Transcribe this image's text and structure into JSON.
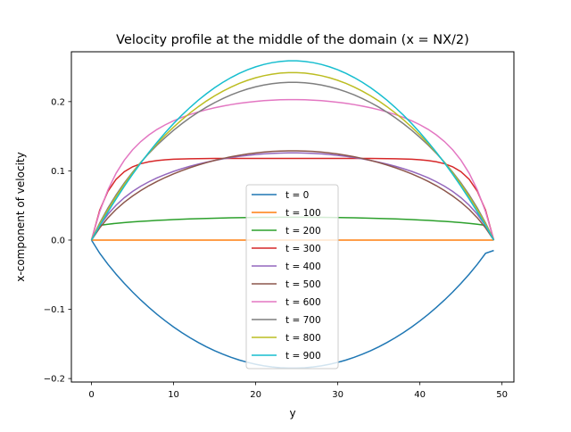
{
  "chart_data": {
    "type": "line",
    "title": "Velocity profile at the middle of the domain (x = NX/2)",
    "xlabel": "y",
    "ylabel": "x-component of velocity",
    "xlim": [
      -2.45,
      51.45
    ],
    "ylim": [
      -0.205,
      0.272
    ],
    "xticks": [
      0,
      10,
      20,
      30,
      40,
      50
    ],
    "yticks": [
      -0.2,
      -0.1,
      0.0,
      0.1,
      0.2
    ],
    "xtick_labels": [
      "0",
      "10",
      "20",
      "30",
      "40",
      "50"
    ],
    "ytick_labels": [
      "−0.2",
      "−0.1",
      "0.0",
      "0.1",
      "0.2"
    ],
    "grid": false,
    "legend_position": "bottom-center",
    "y_count": 50,
    "series": [
      {
        "name": "t = 0",
        "color": "#1f77b4",
        "shape": "parabola",
        "min": -0.185,
        "peak": -0.185,
        "y0": 0.0,
        "y49": -0.015
      },
      {
        "name": "t = 100",
        "color": "#ff7f0e",
        "shape": "flat",
        "peak": 0.0
      },
      {
        "name": "t = 200",
        "color": "#2ca02c",
        "shape": "blunt",
        "peak": 0.033,
        "wall": 0.018
      },
      {
        "name": "t = 300",
        "color": "#d62728",
        "shape": "plug",
        "peak": 0.118
      },
      {
        "name": "t = 400",
        "color": "#9467bd",
        "shape": "mixed",
        "peak": 0.126
      },
      {
        "name": "t = 500",
        "color": "#8c564b",
        "shape": "mixed",
        "peak": 0.129
      },
      {
        "name": "t = 600",
        "color": "#e377c2",
        "shape": "mixed",
        "peak": 0.203
      },
      {
        "name": "t = 700",
        "color": "#7f7f7f",
        "shape": "mixed",
        "peak": 0.228
      },
      {
        "name": "t = 800",
        "color": "#bcbd22",
        "shape": "mixed",
        "peak": 0.242
      },
      {
        "name": "t = 900",
        "color": "#17becf",
        "shape": "parabola",
        "peak": 0.259
      }
    ]
  }
}
